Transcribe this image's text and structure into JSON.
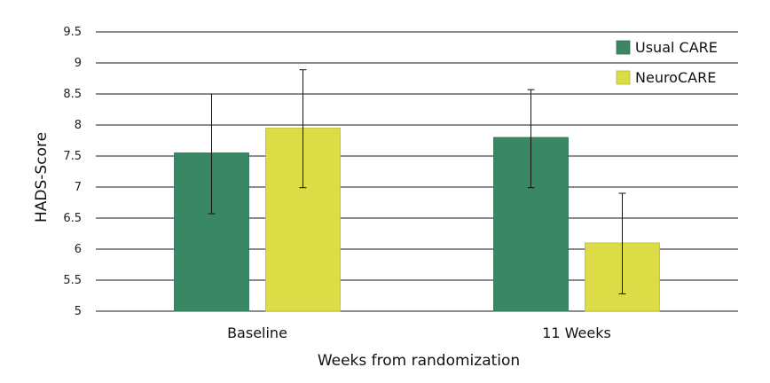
{
  "chart_data": {
    "type": "bar",
    "title": "",
    "xlabel": "Weeks from randomization",
    "ylabel": "HADS-Score",
    "ylim": [
      5,
      9.5
    ],
    "yticks": [
      "5",
      "5.5",
      "6",
      "6.5",
      "7",
      "7.5",
      "8",
      "8.5",
      "9",
      "9.5"
    ],
    "categories": [
      "Baseline",
      "11 Weeks"
    ],
    "series": [
      {
        "name": "Usual CARE",
        "color": "#3a8765",
        "values": [
          7.55,
          7.8
        ],
        "error_low": [
          6.57,
          6.99
        ],
        "error_high": [
          8.5,
          8.57
        ]
      },
      {
        "name": "NeuroCARE",
        "color": "#dcdc46",
        "values": [
          7.95,
          6.1
        ],
        "error_low": [
          6.99,
          5.28
        ],
        "error_high": [
          8.89,
          6.9
        ]
      }
    ],
    "grid": true,
    "legend": "top-right"
  }
}
